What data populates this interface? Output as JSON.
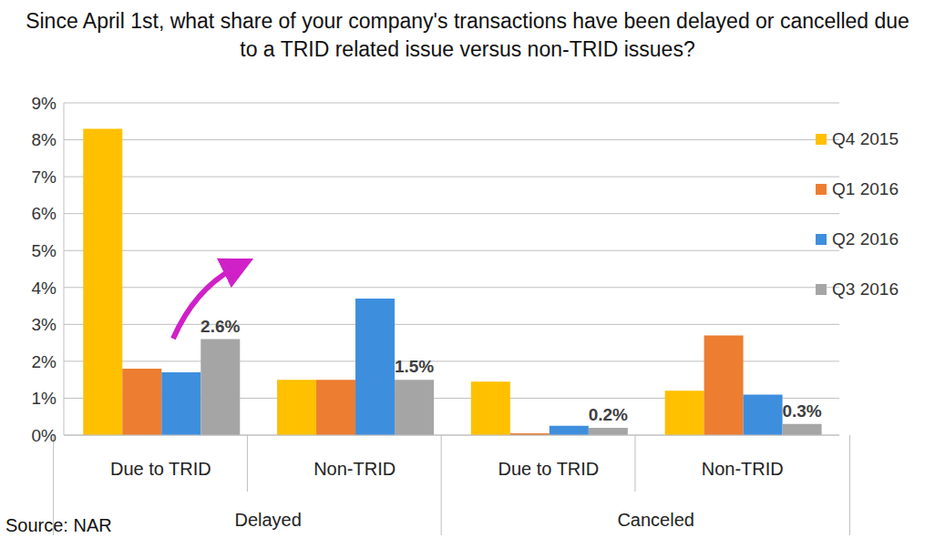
{
  "chart_data": {
    "type": "bar",
    "title": "Since April 1st, what share of your company's transactions have been delayed or cancelled due to a TRID related issue versus non-TRID issues?",
    "categories": [
      "Due to TRID",
      "Non-TRID",
      "Due to TRID",
      "Non-TRID"
    ],
    "groups": [
      {
        "name": "Delayed",
        "size": 2
      },
      {
        "name": "Canceled",
        "size": 2
      }
    ],
    "series": [
      {
        "name": "Q4 2015",
        "color": "#FFC000",
        "values": [
          8.3,
          1.5,
          1.45,
          1.2
        ]
      },
      {
        "name": "Q1 2016",
        "color": "#ED7D31",
        "values": [
          1.8,
          1.5,
          0.05,
          2.7
        ]
      },
      {
        "name": "Q2 2016",
        "color": "#3E8EDE",
        "values": [
          1.7,
          3.7,
          0.25,
          1.1
        ]
      },
      {
        "name": "Q3 2016",
        "color": "#A5A5A5",
        "values": [
          2.6,
          1.5,
          0.2,
          0.3
        ],
        "data_labels": true,
        "value_labels": [
          "2.6%",
          "1.5%",
          "0.2%",
          "0.3%"
        ]
      }
    ],
    "ylim": [
      0,
      9
    ],
    "yticks": [
      {
        "value": 0,
        "label": "0%"
      },
      {
        "value": 1,
        "label": "1%"
      },
      {
        "value": 2,
        "label": "2%"
      },
      {
        "value": 3,
        "label": "3%"
      },
      {
        "value": 4,
        "label": "4%"
      },
      {
        "value": 5,
        "label": "5%"
      },
      {
        "value": 6,
        "label": "6%"
      },
      {
        "value": 7,
        "label": "7%"
      },
      {
        "value": 8,
        "label": "8%"
      },
      {
        "value": 9,
        "label": "9%"
      }
    ],
    "grid": true,
    "legend": "upper right",
    "source": "Source: NAR"
  }
}
